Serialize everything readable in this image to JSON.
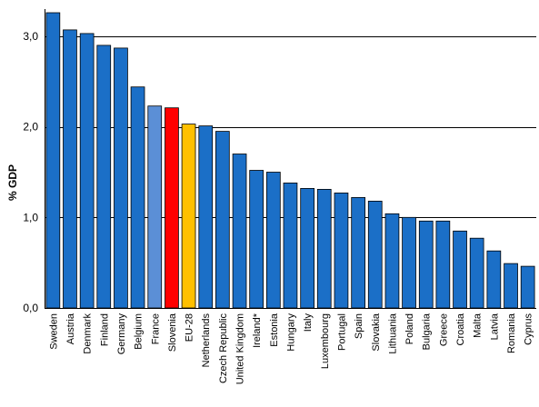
{
  "chart_data": {
    "type": "bar",
    "xlabel": "",
    "ylabel": "% GDP",
    "ylim": [
      0,
      3.3
    ],
    "yticks": [
      "0,0",
      "1,0",
      "2,0",
      "3,0"
    ],
    "ytick_values": [
      0,
      1,
      2,
      3
    ],
    "grid": true,
    "legend": "none",
    "categories": [
      "Sweden",
      "Austria",
      "Denmark",
      "Finland",
      "Germany",
      "Belgium",
      "France",
      "Slovenia",
      "EU-28",
      "Netherlands",
      "Czech Republic",
      "United Kingdom",
      "Ireland*",
      "Estonia",
      "Hungary",
      "Italy",
      "Luxembourg",
      "Portugal",
      "Spain",
      "Slovakia",
      "Lithuania",
      "Poland",
      "Bulgaria",
      "Greece",
      "Croatia",
      "Malta",
      "Latvia",
      "Romania",
      "Cyprus"
    ],
    "values": [
      3.26,
      3.07,
      3.03,
      2.9,
      2.87,
      2.44,
      2.23,
      2.21,
      2.03,
      2.01,
      1.95,
      1.7,
      1.52,
      1.5,
      1.38,
      1.32,
      1.31,
      1.27,
      1.22,
      1.18,
      1.04,
      1.0,
      0.96,
      0.96,
      0.85,
      0.77,
      0.63,
      0.49,
      0.46
    ],
    "colors": {
      "default": "#1B6FC7",
      "France": "#5B8FD6",
      "Slovenia": "#FF0000",
      "EU-28": "#FFC000",
      "gridline": "#000000"
    }
  }
}
